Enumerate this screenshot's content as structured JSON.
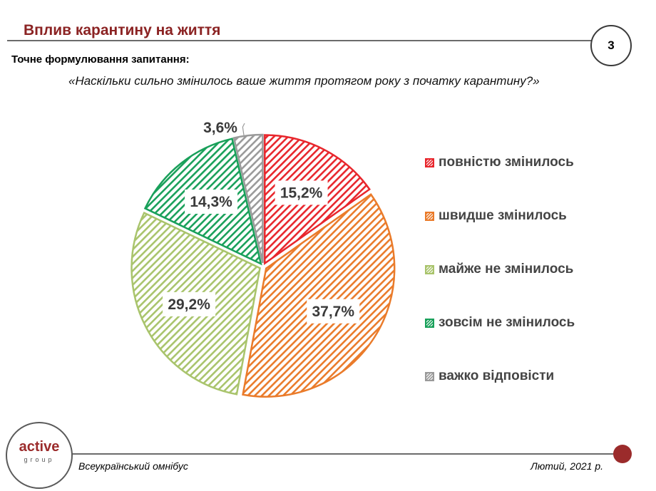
{
  "header": {
    "title": "Вплив карантину на життя",
    "page_number": "3"
  },
  "question": {
    "label": "Точне формулювання запитання:",
    "text": "«Наскільки сильно змінилось ваше життя протягом року з початку карантину?»"
  },
  "chart_data": {
    "type": "pie",
    "slices": [
      {
        "name": "повністю змінилось",
        "value": 15.2,
        "label": "15,2%",
        "color": "#e8262c"
      },
      {
        "name": "швидше змінилось",
        "value": 37.7,
        "label": "37,7%",
        "color": "#ea7b2a"
      },
      {
        "name": "майже не змінилось",
        "value": 29.2,
        "label": "29,2%",
        "color": "#a9c46c"
      },
      {
        "name": "зовсім не змінилось",
        "value": 14.3,
        "label": "14,3%",
        "color": "#19a05a"
      },
      {
        "name": "важко відповісти",
        "value": 3.6,
        "label": "3,6%",
        "color": "#9a9a9a"
      }
    ],
    "pattern": "diagonal-hatch",
    "legend_position": "right"
  },
  "footer": {
    "logo_word": "active",
    "logo_sub": "group",
    "left_text": "Всеукраїнський омнібус",
    "right_text": "Лютий, 2021 р."
  },
  "colors": {
    "title": "#8b2323",
    "accent_dot": "#9b2b2b"
  }
}
